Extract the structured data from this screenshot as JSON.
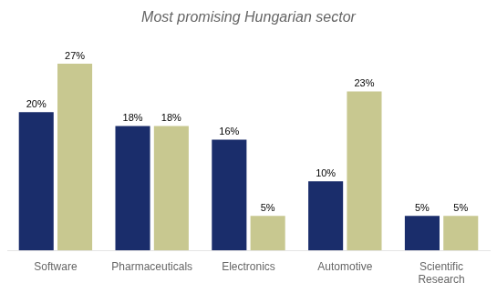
{
  "chart_data": {
    "type": "bar",
    "title": "Most promising Hungarian sector",
    "categories": [
      "Software",
      "Pharmaceuticals",
      "Electronics",
      "Automotive",
      "Scientific\nResearch"
    ],
    "series": [
      {
        "color": "#1a2d6b",
        "values": [
          20,
          18,
          16,
          10,
          5
        ],
        "value_labels": [
          "20%",
          "18%",
          "16%",
          "10%",
          "5%"
        ]
      },
      {
        "color": "#c8c890",
        "values": [
          27,
          18,
          5,
          23,
          5
        ],
        "value_labels": [
          "27%",
          "18%",
          "5%",
          "23%",
          "5%"
        ]
      }
    ],
    "ylim": [
      0,
      30
    ],
    "grid": false,
    "data_labels": true,
    "tick_labels": "x"
  }
}
